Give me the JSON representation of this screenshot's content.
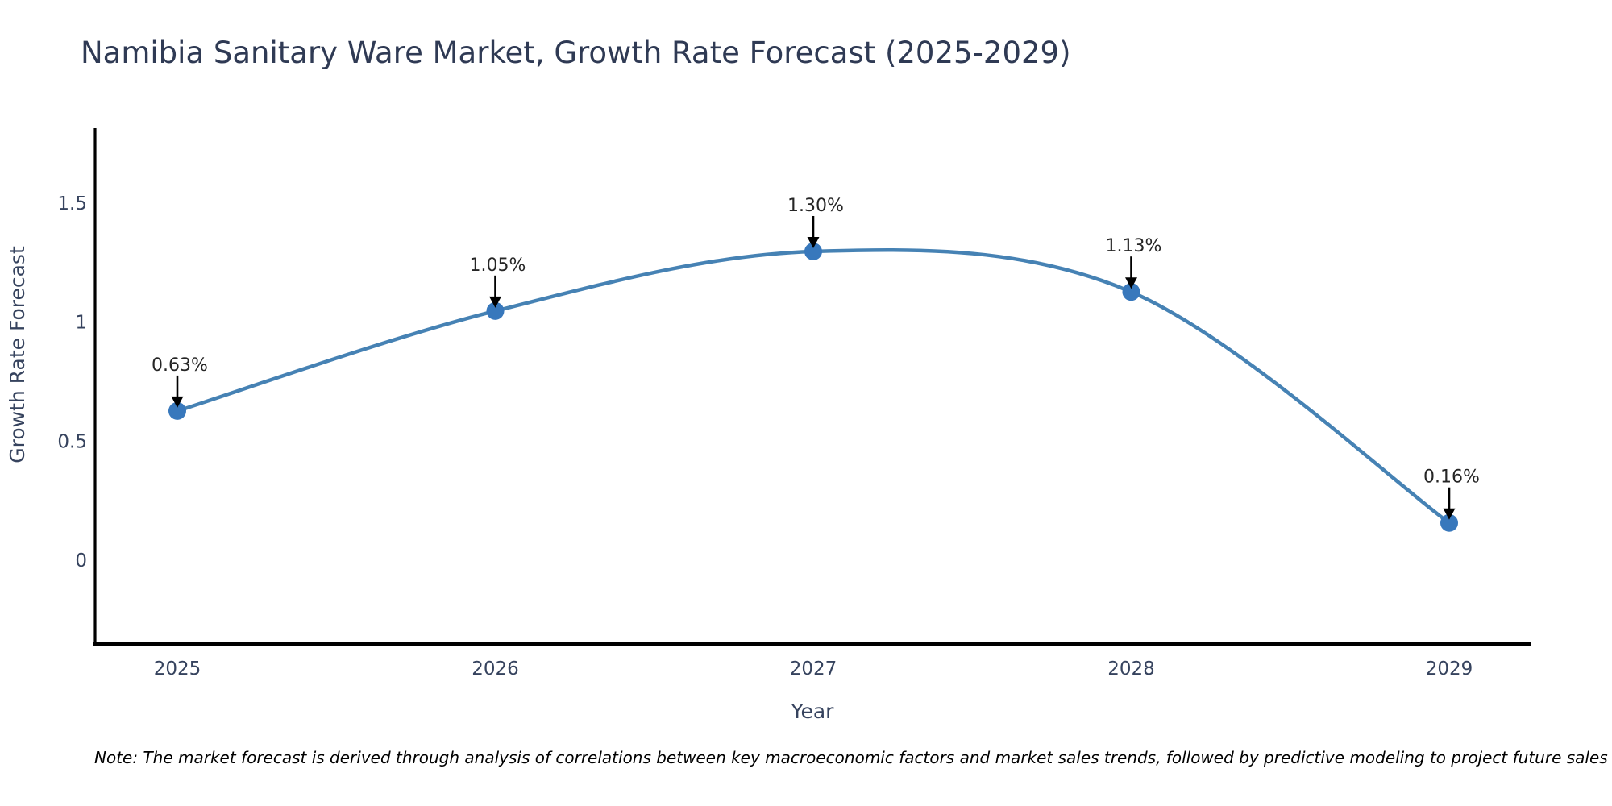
{
  "title": "Namibia Sanitary Ware Market, Growth Rate Forecast (2025-2029)",
  "note": "Note: The market forecast is derived through analysis of correlations between key macroeconomic factors and market sales trends, followed by predictive modeling to project future sales",
  "colors": {
    "background": "#ffffff",
    "title": "#2f3a54",
    "tick": "#36435e",
    "axis": "#000000",
    "note": "#000000",
    "line": "#4682b4",
    "marker": "#3878bc",
    "annotation_text": "#262626",
    "arrow": "#000000"
  },
  "chart_data": {
    "type": "line",
    "title": "Namibia Sanitary Ware Market, Growth Rate Forecast (2025-2029)",
    "x": [
      2025,
      2026,
      2027,
      2028,
      2029
    ],
    "x_labels": [
      "2025",
      "2026",
      "2027",
      "2028",
      "2029"
    ],
    "series": [
      {
        "name": "Growth Rate Forecast",
        "values": [
          0.63,
          1.05,
          1.3,
          1.13,
          0.16
        ]
      }
    ],
    "point_labels": [
      "0.63%",
      "1.05%",
      "1.30%",
      "1.13%",
      "0.16%"
    ],
    "xlabel": "Year",
    "ylabel": "Growth Rate Forecast",
    "yticks": [
      0,
      0.5,
      1,
      1.5
    ],
    "ytick_labels": [
      "0",
      "0.5",
      "1",
      "1.5"
    ],
    "xlim": [
      2024.74,
      2029.26
    ],
    "ylim": [
      -0.35,
      1.82
    ],
    "grid": false,
    "legend": "none",
    "smooth": true,
    "line_color": "#4682b4",
    "marker_color": "#3878bc"
  }
}
